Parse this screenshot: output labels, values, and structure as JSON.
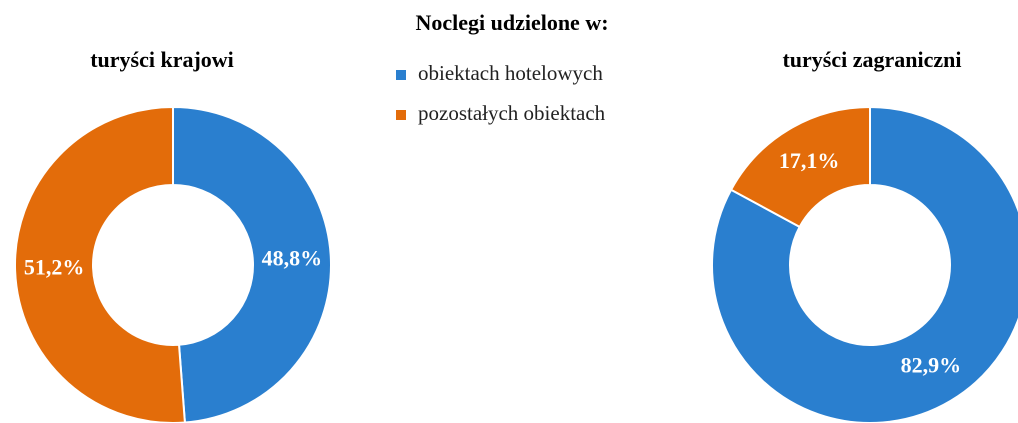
{
  "legend_title": "Noclegi udzielone w:",
  "chart_data": [
    {
      "type": "pie",
      "title": "turyści krajowi",
      "categories": [
        "obiektach hotelowych",
        "pozostałych obiektach"
      ],
      "values": [
        48.8,
        51.2
      ],
      "value_labels": [
        "48,8%",
        "51,2%"
      ],
      "colors": [
        "#2a7fcf",
        "#e36c0a"
      ]
    },
    {
      "type": "pie",
      "title": "turyści zagraniczni",
      "categories": [
        "obiektach hotelowych",
        "pozostałych obiektach"
      ],
      "values": [
        82.9,
        17.1
      ],
      "value_labels": [
        "82,9%",
        "17,1%"
      ],
      "colors": [
        "#2a7fcf",
        "#e36c0a"
      ]
    }
  ]
}
